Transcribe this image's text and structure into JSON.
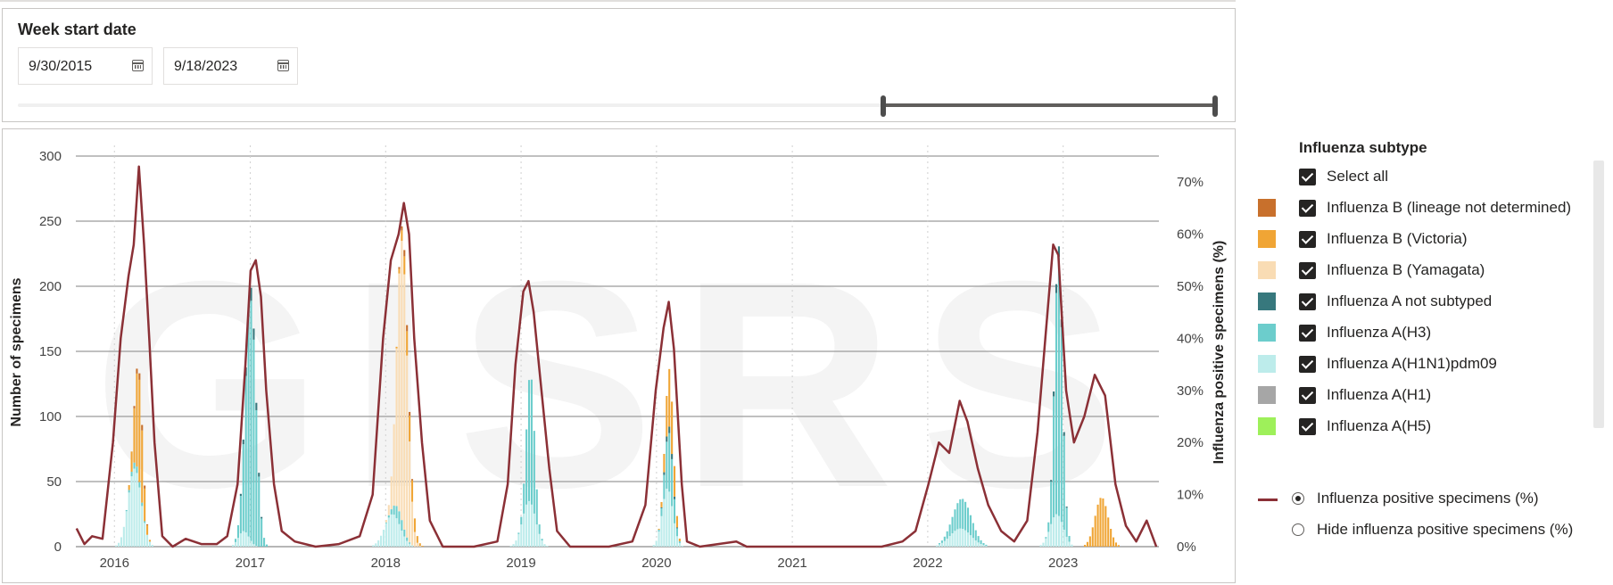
{
  "date_filter": {
    "title": "Week start date",
    "start": "9/30/2015",
    "end": "9/18/2023",
    "selected_range_fraction": [
      0.727,
      1.0
    ]
  },
  "legend": {
    "title": "Influenza subtype",
    "select_all": "Select all",
    "items": [
      {
        "label": "Influenza B (lineage not determined)",
        "color": "#c8702c"
      },
      {
        "label": "Influenza B (Victoria)",
        "color": "#f0a535"
      },
      {
        "label": "Influenza B (Yamagata)",
        "color": "#f9dcb4"
      },
      {
        "label": "Influenza A not subtyped",
        "color": "#37787d"
      },
      {
        "label": "Influenza A(H3)",
        "color": "#6ccdcc"
      },
      {
        "label": "Influenza A(H1N1)pdm09",
        "color": "#bdeceb"
      },
      {
        "label": "Influenza A(H1)",
        "color": "#a6a6a6"
      },
      {
        "label": "Influenza A(H5)",
        "color": "#9ef05a"
      }
    ],
    "line_options": [
      {
        "label": "Influenza positive specimens (%)",
        "selected": true
      },
      {
        "label": "Hide influenza positive specimens (%)",
        "selected": false
      }
    ],
    "line_color": "#8b3036"
  },
  "chart_data": {
    "type": "bar",
    "watermark": "GISRS",
    "ylabel": "Number of specimens",
    "y2label": "Influenza positive specimens (%)",
    "ylim": [
      0,
      300
    ],
    "y2lim": [
      0,
      75
    ],
    "yticks": [
      "0",
      "50",
      "100",
      "150",
      "200",
      "250",
      "300"
    ],
    "y2ticks": [
      "0%",
      "10%",
      "20%",
      "30%",
      "40%",
      "50%",
      "60%",
      "70%"
    ],
    "xlim": [
      "2015-09-28",
      "2023-09-25"
    ],
    "xticks": [
      "2016",
      "2017",
      "2018",
      "2019",
      "2020",
      "2021",
      "2022",
      "2023"
    ],
    "grid": "horizontal",
    "stack_order": [
      "A(H1N1)pdm09",
      "A(H3)",
      "A not subtyped",
      "B (Yamagata)",
      "B (Victoria)",
      "B (lineage not determined)"
    ],
    "series": [
      {
        "name": "Influenza A(H1N1)pdm09",
        "color": "#bdeceb",
        "peaks": [
          {
            "date": "2016-03-01",
            "value": 60,
            "width_weeks": 5
          },
          {
            "date": "2016-12-20",
            "value": 12,
            "width_weeks": 4
          },
          {
            "date": "2018-01-25",
            "value": 25,
            "width_weeks": 6
          },
          {
            "date": "2019-01-28",
            "value": 35,
            "width_weeks": 5
          },
          {
            "date": "2020-02-05",
            "value": 45,
            "width_weeks": 4
          },
          {
            "date": "2022-04-05",
            "value": 14,
            "width_weeks": 8
          },
          {
            "date": "2022-12-20",
            "value": 25,
            "width_weeks": 5
          }
        ]
      },
      {
        "name": "Influenza A(H3)",
        "color": "#6ccdcc",
        "peaks": [
          {
            "date": "2016-03-05",
            "value": 5,
            "width_weeks": 4
          },
          {
            "date": "2017-01-08",
            "value": 185,
            "width_weeks": 4
          },
          {
            "date": "2018-02-10",
            "value": 10,
            "width_weeks": 4
          },
          {
            "date": "2019-02-01",
            "value": 100,
            "width_weeks": 3
          },
          {
            "date": "2020-02-10",
            "value": 45,
            "width_weeks": 3
          },
          {
            "date": "2022-04-10",
            "value": 23,
            "width_weeks": 7
          },
          {
            "date": "2022-12-25",
            "value": 200,
            "width_weeks": 3
          }
        ]
      },
      {
        "name": "Influenza A not subtyped",
        "color": "#37787d",
        "peaks": [
          {
            "date": "2017-01-08",
            "value": 10,
            "width_weeks": 4
          },
          {
            "date": "2020-02-10",
            "value": 5,
            "width_weeks": 3
          },
          {
            "date": "2022-12-25",
            "value": 8,
            "width_weeks": 3
          }
        ]
      },
      {
        "name": "Influenza B (Yamagata)",
        "color": "#f9dcb4",
        "peaks": [
          {
            "date": "2018-02-20",
            "value": 215,
            "width_weeks": 4
          }
        ]
      },
      {
        "name": "Influenza B (Victoria)",
        "color": "#f0a535",
        "peaks": [
          {
            "date": "2016-03-12",
            "value": 80,
            "width_weeks": 3
          },
          {
            "date": "2018-03-10",
            "value": 20,
            "width_weeks": 4
          },
          {
            "date": "2020-02-12",
            "value": 45,
            "width_weeks": 3
          },
          {
            "date": "2023-04-20",
            "value": 38,
            "width_weeks": 5
          }
        ]
      },
      {
        "name": "Influenza B (lineage not determined)",
        "color": "#c8702c",
        "peaks": [
          {
            "date": "2016-03-15",
            "value": 5,
            "width_weeks": 3
          },
          {
            "date": "2018-03-01",
            "value": 5,
            "width_weeks": 3
          }
        ]
      }
    ],
    "line": {
      "name": "Influenza positive specimens (%)",
      "color": "#8b3036",
      "points": [
        [
          "2015-09-30",
          3.5
        ],
        [
          "2015-10-21",
          0.5
        ],
        [
          "2015-11-11",
          2.0
        ],
        [
          "2015-12-09",
          1.5
        ],
        [
          "2016-01-06",
          20
        ],
        [
          "2016-01-27",
          40
        ],
        [
          "2016-02-17",
          52
        ],
        [
          "2016-03-02",
          58
        ],
        [
          "2016-03-16",
          73
        ],
        [
          "2016-03-30",
          58
        ],
        [
          "2016-04-13",
          40
        ],
        [
          "2016-04-27",
          20
        ],
        [
          "2016-05-18",
          2
        ],
        [
          "2016-06-15",
          0
        ],
        [
          "2016-07-20",
          1.5
        ],
        [
          "2016-08-31",
          0.5
        ],
        [
          "2016-10-12",
          0.5
        ],
        [
          "2016-11-09",
          2
        ],
        [
          "2016-12-07",
          12
        ],
        [
          "2016-12-28",
          35
        ],
        [
          "2017-01-11",
          53
        ],
        [
          "2017-01-25",
          55
        ],
        [
          "2017-02-08",
          48
        ],
        [
          "2017-02-22",
          30
        ],
        [
          "2017-03-15",
          12
        ],
        [
          "2017-04-05",
          3
        ],
        [
          "2017-05-10",
          1
        ],
        [
          "2017-07-05",
          0
        ],
        [
          "2017-09-06",
          0.5
        ],
        [
          "2017-11-01",
          2
        ],
        [
          "2017-12-06",
          10
        ],
        [
          "2018-01-03",
          40
        ],
        [
          "2018-01-24",
          55
        ],
        [
          "2018-02-14",
          60
        ],
        [
          "2018-02-28",
          66
        ],
        [
          "2018-03-14",
          60
        ],
        [
          "2018-03-28",
          40
        ],
        [
          "2018-04-18",
          20
        ],
        [
          "2018-05-09",
          5
        ],
        [
          "2018-06-13",
          0
        ],
        [
          "2018-09-05",
          0
        ],
        [
          "2018-11-07",
          1
        ],
        [
          "2018-12-05",
          12
        ],
        [
          "2018-12-26",
          35
        ],
        [
          "2019-01-16",
          49
        ],
        [
          "2019-01-30",
          51
        ],
        [
          "2019-02-13",
          45
        ],
        [
          "2019-03-06",
          30
        ],
        [
          "2019-03-27",
          15
        ],
        [
          "2019-04-17",
          3
        ],
        [
          "2019-05-22",
          0
        ],
        [
          "2019-09-04",
          0
        ],
        [
          "2019-11-06",
          1
        ],
        [
          "2019-12-11",
          8
        ],
        [
          "2020-01-08",
          30
        ],
        [
          "2020-01-29",
          42
        ],
        [
          "2020-02-12",
          47
        ],
        [
          "2020-02-26",
          38
        ],
        [
          "2020-03-18",
          12
        ],
        [
          "2020-04-01",
          1
        ],
        [
          "2020-05-06",
          0
        ],
        [
          "2020-08-12",
          1
        ],
        [
          "2020-09-09",
          0
        ],
        [
          "2021-09-08",
          0
        ],
        [
          "2021-11-03",
          1
        ],
        [
          "2021-12-08",
          3
        ],
        [
          "2022-01-12",
          12
        ],
        [
          "2022-02-09",
          20
        ],
        [
          "2022-03-09",
          18
        ],
        [
          "2022-04-06",
          28
        ],
        [
          "2022-04-27",
          24
        ],
        [
          "2022-05-25",
          15
        ],
        [
          "2022-06-22",
          8
        ],
        [
          "2022-07-27",
          3
        ],
        [
          "2022-08-31",
          1
        ],
        [
          "2022-10-05",
          5
        ],
        [
          "2022-11-02",
          22
        ],
        [
          "2022-11-23",
          40
        ],
        [
          "2022-12-14",
          58
        ],
        [
          "2022-12-28",
          56
        ],
        [
          "2023-01-18",
          30
        ],
        [
          "2023-02-08",
          20
        ],
        [
          "2023-03-08",
          25
        ],
        [
          "2023-04-05",
          33
        ],
        [
          "2023-05-03",
          29
        ],
        [
          "2023-05-31",
          12
        ],
        [
          "2023-06-28",
          4
        ],
        [
          "2023-07-26",
          1
        ],
        [
          "2023-08-23",
          5
        ],
        [
          "2023-09-18",
          0
        ]
      ]
    }
  }
}
